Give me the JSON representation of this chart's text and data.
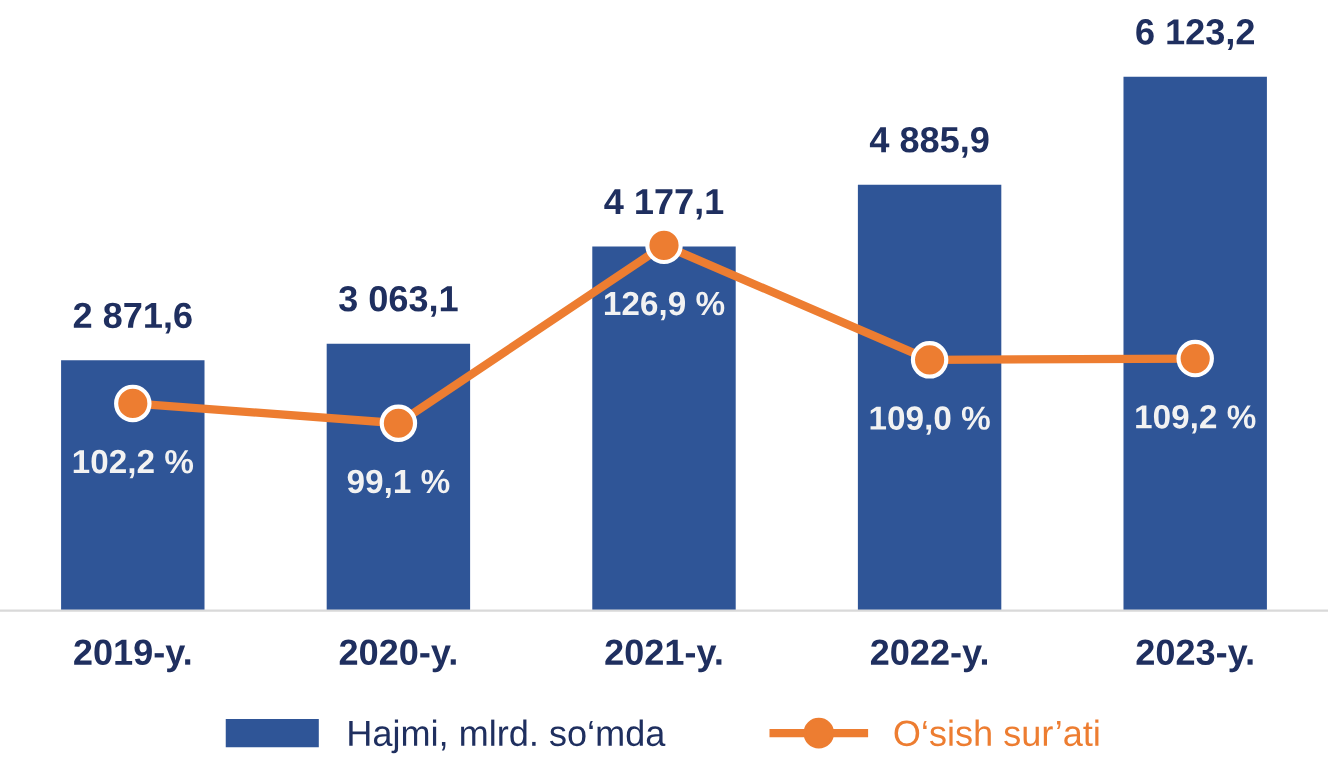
{
  "chart_data": {
    "type": "bar",
    "categories": [
      "2019-y.",
      "2020-y.",
      "2021-y.",
      "2022-y.",
      "2023-y."
    ],
    "series": [
      {
        "name": "Hajmi, mlrd. so‘mda",
        "color": "#2f5597",
        "values": [
          2871.6,
          3063.1,
          4177.1,
          4885.9,
          6123.2
        ],
        "value_labels": [
          "2 871,6",
          "3 063,1",
          "4 177,1",
          "4 885,9",
          "6 123,2"
        ]
      },
      {
        "name": "O‘sish sur’ati",
        "type": "line",
        "axis": "y2",
        "color": "#ed7d31",
        "marker": "circle",
        "line_style": "solid",
        "values": [
          102.2,
          99.1,
          126.9,
          109.0,
          109.2
        ],
        "value_labels": [
          "102,2 %",
          "99,1 %",
          "126,9 %",
          "109,0 %",
          "109,2 %"
        ]
      }
    ],
    "legend": "bottom",
    "grid": false
  }
}
